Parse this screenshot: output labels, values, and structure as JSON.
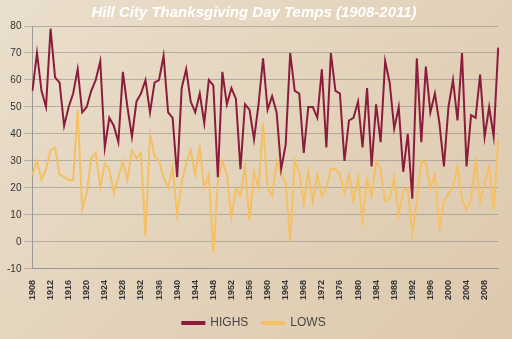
{
  "chart_data": {
    "type": "line",
    "title": "Hill City Thanksgiving Day Temps (1908-2011)",
    "categories": [
      "1908",
      null,
      null,
      null,
      "1912",
      null,
      null,
      null,
      "1916",
      null,
      null,
      null,
      "1920",
      null,
      null,
      null,
      "1924",
      null,
      null,
      null,
      "1928",
      null,
      null,
      null,
      "1932",
      null,
      null,
      null,
      "1936",
      null,
      null,
      null,
      "1940",
      null,
      null,
      null,
      "1944",
      null,
      null,
      null,
      "1948",
      null,
      null,
      null,
      "1952",
      null,
      null,
      null,
      "1956",
      null,
      null,
      null,
      "1960",
      null,
      null,
      null,
      "1964",
      null,
      null,
      null,
      "1968",
      null,
      null,
      null,
      "1972",
      null,
      null,
      null,
      "1976",
      null,
      null,
      null,
      "1980",
      null,
      null,
      null,
      "1984",
      null,
      null,
      null,
      "1988",
      null,
      null,
      null,
      "1992",
      null,
      null,
      null,
      "1996",
      null,
      null,
      null,
      "2000",
      null,
      null,
      null,
      "2004",
      null,
      null,
      null,
      "2008",
      null,
      null,
      null
    ],
    "series": [
      {
        "name": "HIGHS",
        "color": "#8c1c3c",
        "values": [
          56,
          70,
          56,
          50,
          79,
          61,
          59,
          43,
          50,
          55,
          64,
          48,
          50,
          56,
          60,
          67,
          35,
          46,
          43,
          37,
          63,
          50,
          39,
          52,
          55,
          60,
          48,
          59,
          60,
          69,
          48,
          46,
          24,
          57,
          64,
          52,
          48,
          55,
          44,
          60,
          58,
          24,
          63,
          51,
          57,
          53,
          27,
          51,
          49,
          38,
          51,
          68,
          49,
          54,
          48,
          27,
          36,
          70,
          56,
          55,
          33,
          50,
          50,
          46,
          64,
          35,
          70,
          56,
          55,
          30,
          45,
          46,
          52,
          35,
          57,
          28,
          51,
          37,
          67,
          59,
          42,
          50,
          26,
          40,
          16,
          68,
          37,
          65,
          48,
          55,
          44,
          28,
          50,
          60,
          45,
          70,
          28,
          47,
          46,
          62,
          39,
          50,
          39,
          72
        ]
      },
      {
        "name": "LOWS",
        "color": "#f4c063",
        "values": [
          25,
          30,
          23,
          27,
          34,
          35,
          25,
          24,
          23,
          23,
          49,
          12,
          18,
          31,
          33,
          20,
          29,
          27,
          18,
          24,
          30,
          23,
          34,
          31,
          33,
          2,
          40,
          32,
          30,
          24,
          20,
          28,
          10,
          22,
          29,
          34,
          25,
          35,
          20,
          25,
          -4,
          22,
          30,
          25,
          9,
          20,
          17,
          28,
          8,
          26,
          20,
          44,
          20,
          17,
          30,
          25,
          22,
          0,
          30,
          26,
          14,
          26,
          15,
          25,
          17,
          20,
          27,
          27,
          25,
          18,
          25,
          15,
          24,
          8,
          23,
          17,
          30,
          27,
          15,
          16,
          24,
          10,
          19,
          20,
          3,
          15,
          30,
          29,
          20,
          25,
          5,
          15,
          18,
          20,
          28,
          16,
          12,
          16,
          30,
          15,
          22,
          28,
          12,
          38
        ]
      }
    ],
    "ylim": [
      -10,
      80
    ],
    "yticks": [
      -10,
      0,
      10,
      20,
      30,
      40,
      50,
      60,
      70,
      80
    ],
    "grid": true,
    "legend": "bottom"
  }
}
